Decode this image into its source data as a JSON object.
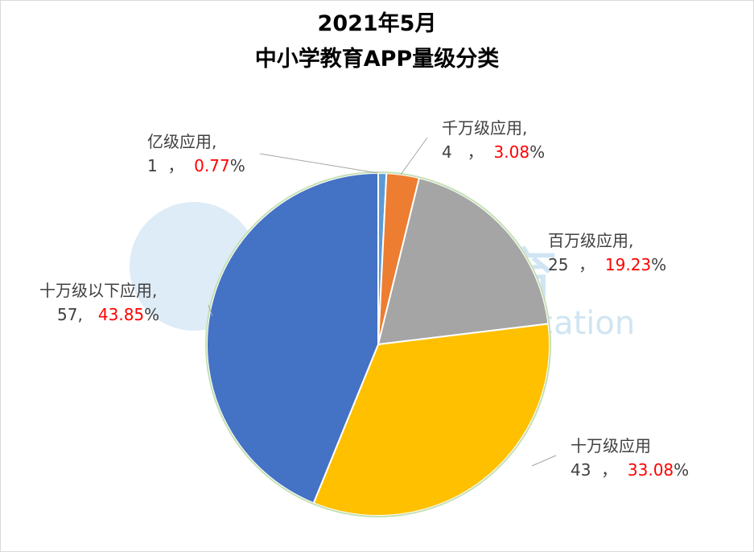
{
  "chart_data": {
    "type": "pie",
    "title": [
      "2021年5月",
      "中小学教育APP量级分类"
    ],
    "slices": [
      {
        "label": "亿级应用",
        "value": 1,
        "percent": "0.77",
        "color": "#5b9bd5"
      },
      {
        "label": "千万级应用",
        "value": 4,
        "percent": "3.08",
        "color": "#ed7d31"
      },
      {
        "label": "百万级应用",
        "value": 25,
        "percent": "19.23",
        "color": "#a5a5a5"
      },
      {
        "label": "十万级应用",
        "value": 43,
        "percent": "33.08",
        "color": "#ffc000"
      },
      {
        "label": "十万级以下应用",
        "value": 57,
        "percent": "43.85",
        "color": "#4472c4"
      }
    ],
    "legend": "none"
  },
  "watermark": {
    "cn": "蓝鲸教育",
    "en": "Blue Whale Education"
  }
}
